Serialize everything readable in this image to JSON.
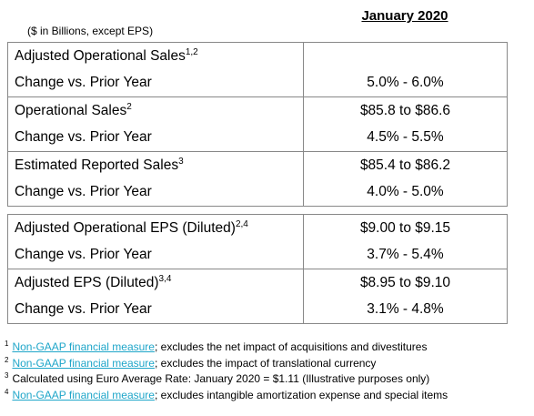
{
  "header": {
    "period": "January 2020",
    "units": "($ in Billions, except EPS)"
  },
  "tables": [
    {
      "groups": [
        {
          "label": "Adjusted Operational Sales",
          "sup": "1,2",
          "change_label": "Change vs. Prior Year",
          "change_value": "5.0% - 6.0%"
        },
        {
          "label": "Operational Sales",
          "sup": "2",
          "value": "$85.8 to $86.6",
          "change_label": "Change vs. Prior Year",
          "change_value": "4.5% - 5.5%"
        },
        {
          "label": "Estimated Reported Sales",
          "sup": "3",
          "value": "$85.4 to $86.2",
          "change_label": "Change vs. Prior Year",
          "change_value": "4.0% - 5.0%"
        }
      ]
    },
    {
      "groups": [
        {
          "label": "Adjusted Operational EPS (Diluted)",
          "sup": "2,4",
          "value": "$9.00 to $9.15",
          "change_label": "Change vs. Prior Year",
          "change_value": "3.7% - 5.4%"
        },
        {
          "label": "Adjusted EPS (Diluted)",
          "sup": "3,4",
          "value": "$8.95 to $9.10",
          "change_label": "Change vs. Prior Year",
          "change_value": "3.1% - 4.8%"
        }
      ]
    }
  ],
  "footnotes": [
    {
      "number": "1",
      "link": "Non-GAAP financial measure",
      "text": "; excludes the net impact of acquisitions and divestitures"
    },
    {
      "number": "2",
      "link": "Non-GAAP financial measure",
      "text": "; excludes the impact of translational currency"
    },
    {
      "number": "3",
      "text": "Calculated using Euro Average Rate: January 2020 = $1.11 (Illustrative purposes only)"
    },
    {
      "number": "4",
      "link": "Non-GAAP financial measure",
      "text": "; excludes intangible amortization expense and special items"
    }
  ]
}
